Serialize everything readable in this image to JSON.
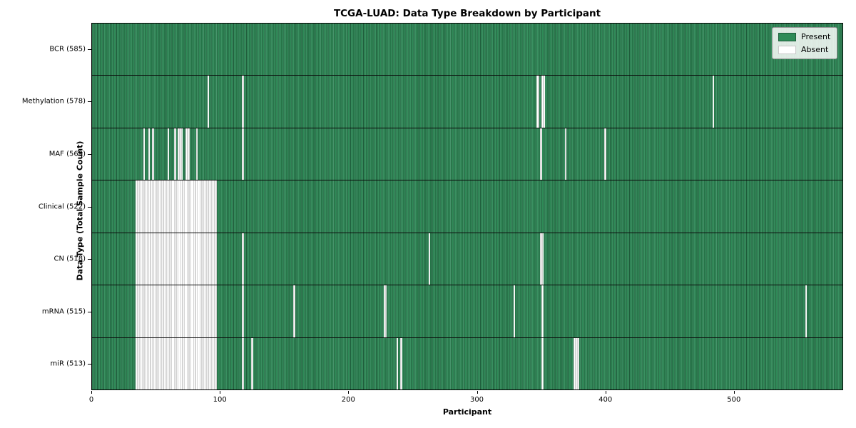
{
  "title": "TCGA-LUAD: Data Type Breakdown by Participant",
  "xlabel": "Participant",
  "ylabel": "Data Type (Total Sample Count)",
  "legend": {
    "present_label": "Present",
    "absent_label": "Absent"
  },
  "colors": {
    "present": "#2e8b57",
    "present_dark_edge": "#1e5c3a",
    "absent": "#ffffff",
    "absent_edge": "#a8a8a8",
    "row_separator": "#0a0a0a"
  },
  "chart_data": {
    "type": "heatmap",
    "title": "TCGA-LUAD: Data Type Breakdown by Participant",
    "xlabel": "Participant",
    "ylabel": "Data Type (Total Sample Count)",
    "x_ticks": [
      0,
      100,
      200,
      300,
      400,
      500
    ],
    "x_range": [
      0,
      585
    ],
    "n_participants": 585,
    "legend_entries": [
      "Present",
      "Absent"
    ],
    "legend_position": "upper right",
    "grid": false,
    "rows": [
      {
        "label": "BCR (585)",
        "data_type": "BCR",
        "present_count": 585,
        "absent_count": 0,
        "absent_runs": []
      },
      {
        "label": "Methylation (578)",
        "data_type": "Methylation",
        "present_count": 578,
        "absent_count": 7,
        "absent_runs": [
          [
            90,
            90
          ],
          [
            117,
            117
          ],
          [
            346,
            347
          ],
          [
            350,
            351
          ],
          [
            483,
            483
          ]
        ]
      },
      {
        "label": "MAF (569)",
        "data_type": "MAF",
        "present_count": 569,
        "absent_count": 16,
        "absent_runs": [
          [
            40,
            40
          ],
          [
            44,
            44
          ],
          [
            47,
            47
          ],
          [
            59,
            59
          ],
          [
            64,
            64
          ],
          [
            67,
            69
          ],
          [
            73,
            75
          ],
          [
            81,
            81
          ],
          [
            117,
            117
          ],
          [
            349,
            349
          ],
          [
            368,
            368
          ],
          [
            399,
            399
          ]
        ]
      },
      {
        "label": "Clinical (522)",
        "data_type": "Clinical",
        "present_count": 522,
        "absent_count": 63,
        "absent_runs": [
          [
            34,
            96
          ]
        ]
      },
      {
        "label": "CN (518)",
        "data_type": "CN",
        "present_count": 518,
        "absent_count": 67,
        "absent_runs": [
          [
            34,
            96
          ],
          [
            117,
            117
          ],
          [
            262,
            262
          ],
          [
            349,
            350
          ]
        ]
      },
      {
        "label": "mRNA (515)",
        "data_type": "mRNA",
        "present_count": 515,
        "absent_count": 70,
        "absent_runs": [
          [
            34,
            96
          ],
          [
            117,
            117
          ],
          [
            157,
            157
          ],
          [
            227,
            228
          ],
          [
            328,
            328
          ],
          [
            350,
            350
          ],
          [
            555,
            555
          ]
        ]
      },
      {
        "label": "miR (513)",
        "data_type": "miR",
        "present_count": 513,
        "absent_count": 72,
        "absent_runs": [
          [
            34,
            96
          ],
          [
            117,
            117
          ],
          [
            124,
            124
          ],
          [
            237,
            237
          ],
          [
            240,
            240
          ],
          [
            350,
            350
          ],
          [
            375,
            378
          ]
        ]
      }
    ]
  }
}
